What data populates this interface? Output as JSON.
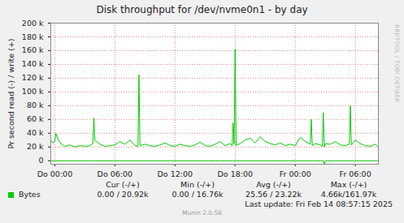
{
  "chart_data": {
    "type": "line",
    "title": "Disk throughput for /dev/nvme0n1 - by day",
    "y_label": "Pr second read (-) / write (+)",
    "side_text": "RRDTOOL / TOBI OETIKER",
    "x": [
      -0.4,
      -0.2,
      0,
      0.1,
      0.3,
      0.6,
      1,
      1.5,
      2,
      2.5,
      3,
      3.5,
      3.8,
      3.9,
      4,
      4.5,
      5,
      5.5,
      6,
      6.5,
      7,
      7.5,
      8,
      8.3,
      8.4,
      8.5,
      9,
      9.5,
      10,
      10.5,
      11,
      11.5,
      12,
      12.5,
      13,
      13.5,
      14,
      14.5,
      15,
      15.5,
      16,
      16.5,
      17,
      17.5,
      17.7,
      17.8,
      17.9,
      18,
      18.1,
      18.5,
      19,
      19.5,
      20,
      20.5,
      21,
      21.5,
      22,
      22.5,
      23,
      23.5,
      24,
      24.5,
      25,
      25.5,
      25.6,
      25.7,
      26,
      26.5,
      26.7,
      26.8,
      26.9,
      27,
      27.5,
      28,
      28.5,
      29,
      29.4,
      29.5,
      29.6,
      30,
      30.5,
      31,
      31.5,
      32,
      32.2
    ],
    "series": [
      {
        "name": "Bytes",
        "color": "#00cc00",
        "values": [
          30000,
          26000,
          28000,
          40000,
          32000,
          25000,
          21000,
          23000,
          20000,
          22000,
          21000,
          22000,
          25000,
          62000,
          30000,
          24000,
          21000,
          22000,
          23000,
          28000,
          24000,
          30000,
          22000,
          21000,
          125000,
          22000,
          24000,
          22000,
          21000,
          23000,
          26000,
          22000,
          21000,
          24000,
          22000,
          21000,
          23000,
          27000,
          22000,
          21000,
          24000,
          28000,
          22000,
          25000,
          22000,
          55000,
          24000,
          162000,
          22000,
          25000,
          30000,
          33000,
          26000,
          35000,
          28000,
          25000,
          23000,
          26000,
          22000,
          24000,
          22000,
          34000,
          28000,
          24000,
          60000,
          22000,
          25000,
          23000,
          21000,
          70000,
          20000,
          25000,
          24000,
          28000,
          23000,
          22000,
          24000,
          80000,
          23000,
          30000,
          25000,
          22000,
          21000,
          24000,
          20920
        ]
      },
      {
        "color": "#00cc00",
        "values": [
          0,
          0,
          0,
          0,
          0,
          0,
          0,
          0,
          0,
          0,
          0,
          0,
          0,
          0,
          0,
          0,
          0,
          0,
          0,
          0,
          0,
          0,
          0,
          0,
          0,
          0,
          0,
          0,
          0,
          0,
          0,
          0,
          0,
          0,
          0,
          0,
          0,
          0,
          0,
          0,
          0,
          0,
          0,
          0,
          0,
          0,
          0,
          0,
          0,
          0,
          0,
          0,
          0,
          0,
          0,
          0,
          0,
          0,
          0,
          0,
          0,
          0,
          0,
          0,
          0,
          0,
          0,
          0,
          0,
          0,
          -4660,
          0,
          0,
          0,
          0,
          0,
          0,
          0,
          0,
          0,
          0,
          0,
          0,
          0,
          0
        ]
      }
    ],
    "xlim": [
      -0.4,
      32.3
    ],
    "xticks": [
      {
        "value": 0,
        "label": "Do 00:00"
      },
      {
        "value": 6,
        "label": "Do 06:00"
      },
      {
        "value": 12,
        "label": "Do 12:00"
      },
      {
        "value": 18,
        "label": "Do 18:00"
      },
      {
        "value": 24,
        "label": "Fr 00:00"
      },
      {
        "value": 30,
        "label": "Fr 06:00"
      }
    ],
    "ylim": [
      -5000,
      200000
    ],
    "yticks": [
      0,
      {
        "value": 20000,
        "label": "20 k"
      },
      {
        "value": 40000,
        "label": "40 k"
      },
      {
        "value": 60000,
        "label": "60 k"
      },
      {
        "value": 80000,
        "label": "80 k"
      },
      {
        "value": 100000,
        "label": "100 k"
      },
      {
        "value": 120000,
        "label": "120 k"
      },
      {
        "value": 140000,
        "label": "140 k"
      },
      {
        "value": 160000,
        "label": "160 k"
      },
      {
        "value": 180000,
        "label": "180 k"
      },
      {
        "value": 200000,
        "label": "200 k"
      }
    ],
    "grid": true,
    "legend_table": {
      "headers": [
        "Cur (-/+)",
        "Min (-/+)",
        "Avg (-/+)",
        "Max (-/+)"
      ],
      "rows": [
        {
          "name": "Bytes",
          "cells": [
            "0.00 / 20.92k",
            "0.00 / 16.76k",
            "25.56 / 23.22k",
            "4.66k/161.97k"
          ]
        }
      ]
    },
    "footer": "Last update: Fri Feb 14 08:57:15 2025",
    "version": "Munin 2.0.56"
  }
}
